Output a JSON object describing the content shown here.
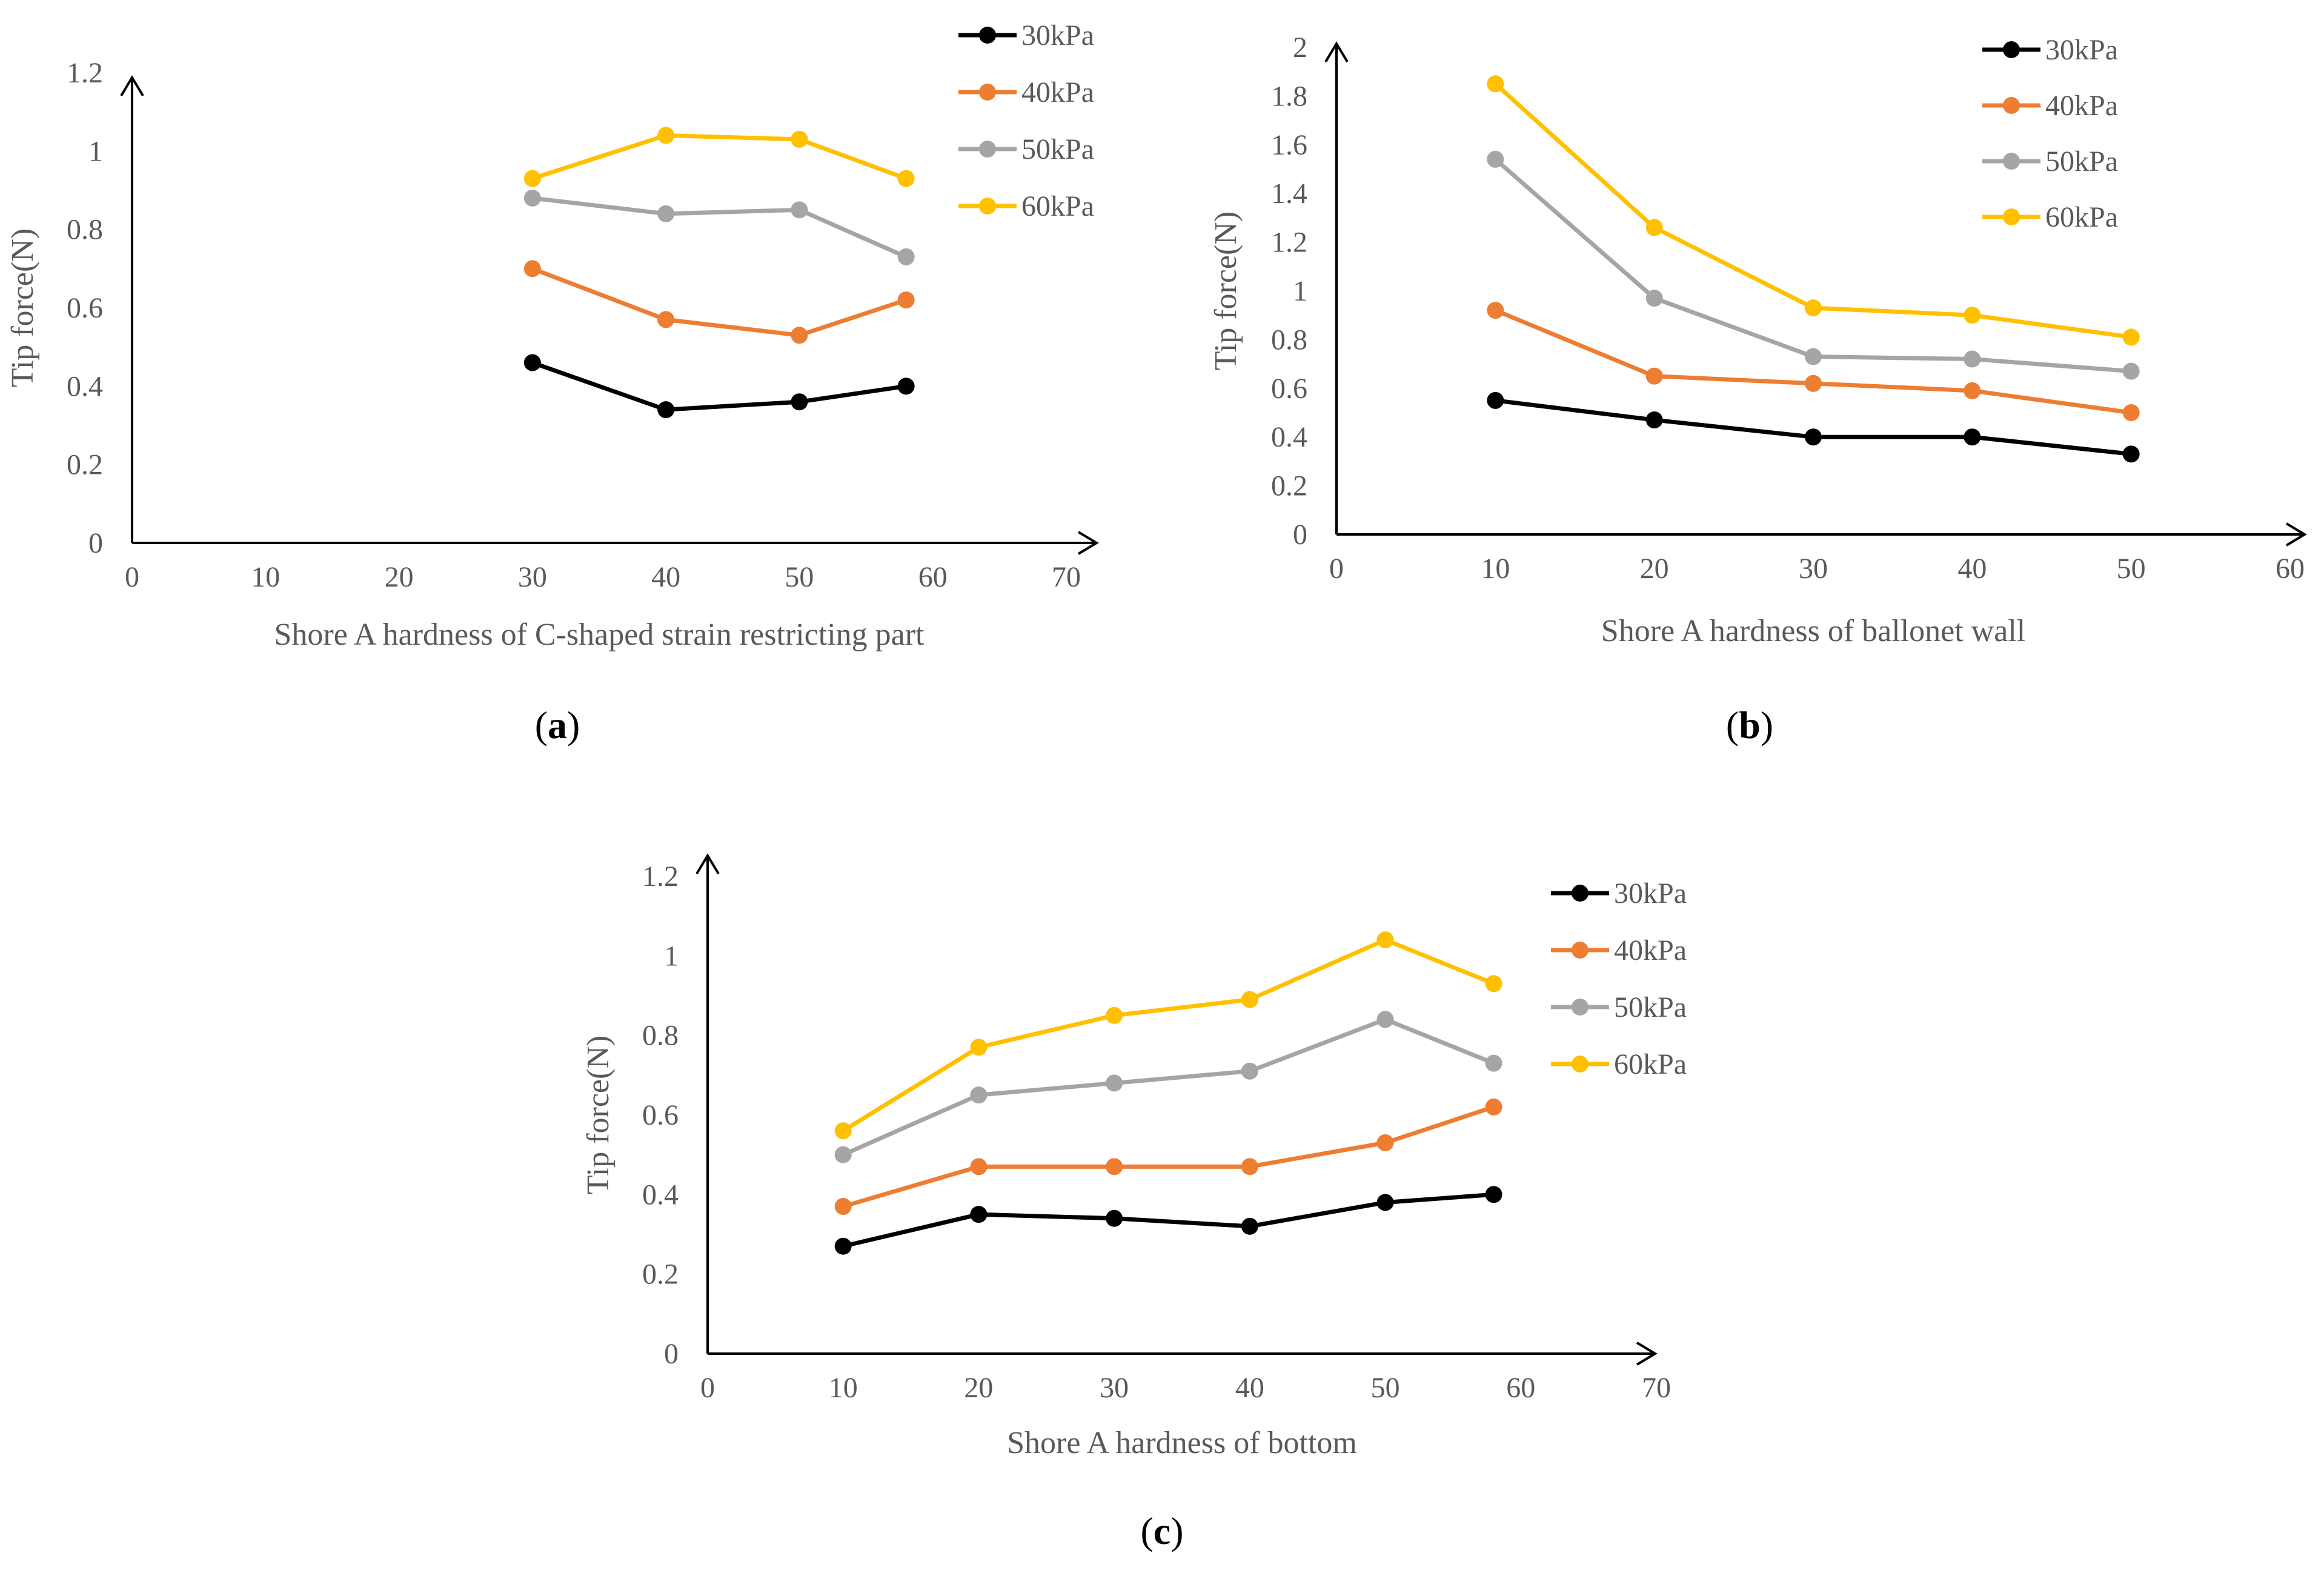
{
  "colors": {
    "30kPa": "#000000",
    "40kPa": "#ED7D31",
    "50kPa": "#A5A5A5",
    "60kPa": "#FFC000"
  },
  "captions": {
    "a": "a",
    "b": "b",
    "c": "c"
  },
  "chart_data": [
    {
      "id": "a",
      "type": "line",
      "title": "",
      "xlabel": "Shore A hardness of C-shaped strain restricting part",
      "ylabel": "Tip force(N)",
      "xlim": [
        0,
        70
      ],
      "ylim": [
        0,
        1.2
      ],
      "xticks": [
        "0",
        "10",
        "20",
        "30",
        "40",
        "50",
        "60",
        "70"
      ],
      "yticks": [
        "0",
        "0.2",
        "0.4",
        "0.6",
        "0.8",
        "1",
        "1.2"
      ],
      "grid": false,
      "legend": "top-right",
      "x": [
        30,
        40,
        50,
        58
      ],
      "series": [
        {
          "name": "30kPa",
          "values": [
            0.46,
            0.34,
            0.36,
            0.4
          ]
        },
        {
          "name": "40kPa",
          "values": [
            0.7,
            0.57,
            0.53,
            0.62
          ]
        },
        {
          "name": "50kPa",
          "values": [
            0.88,
            0.84,
            0.85,
            0.73
          ]
        },
        {
          "name": "60kPa",
          "values": [
            0.93,
            1.04,
            1.03,
            0.93
          ]
        }
      ]
    },
    {
      "id": "b",
      "type": "line",
      "title": "",
      "xlabel": "Shore A hardness of ballonet wall",
      "ylabel": "Tip force(N)",
      "xlim": [
        0,
        60
      ],
      "ylim": [
        0,
        2
      ],
      "xticks": [
        "0",
        "10",
        "20",
        "30",
        "40",
        "50",
        "60"
      ],
      "yticks": [
        "0",
        "0.2",
        "0.4",
        "0.6",
        "0.8",
        "1",
        "1.2",
        "1.4",
        "1.6",
        "1.8",
        "2"
      ],
      "grid": false,
      "legend": "top-right",
      "x": [
        10,
        20,
        30,
        40,
        50
      ],
      "series": [
        {
          "name": "30kPa",
          "values": [
            0.55,
            0.47,
            0.4,
            0.4,
            0.33
          ]
        },
        {
          "name": "40kPa",
          "values": [
            0.92,
            0.65,
            0.62,
            0.59,
            0.5
          ]
        },
        {
          "name": "50kPa",
          "values": [
            1.54,
            0.97,
            0.73,
            0.72,
            0.67
          ]
        },
        {
          "name": "60kPa",
          "values": [
            1.85,
            1.26,
            0.93,
            0.9,
            0.81
          ]
        }
      ]
    },
    {
      "id": "c",
      "type": "line",
      "title": "",
      "xlabel": "Shore A hardness of bottom",
      "ylabel": "Tip force(N)",
      "xlim": [
        0,
        70
      ],
      "ylim": [
        0,
        1.2
      ],
      "xticks": [
        "0",
        "10",
        "20",
        "30",
        "40",
        "50",
        "60",
        "70"
      ],
      "yticks": [
        "0",
        "0.2",
        "0.4",
        "0.6",
        "0.8",
        "1",
        "1.2"
      ],
      "grid": false,
      "legend": "right",
      "x": [
        10,
        20,
        30,
        40,
        50,
        58
      ],
      "series": [
        {
          "name": "30kPa",
          "values": [
            0.27,
            0.35,
            0.34,
            0.32,
            0.38,
            0.4
          ]
        },
        {
          "name": "40kPa",
          "values": [
            0.37,
            0.47,
            0.47,
            0.47,
            0.53,
            0.62
          ]
        },
        {
          "name": "50kPa",
          "values": [
            0.5,
            0.65,
            0.68,
            0.71,
            0.84,
            0.73
          ]
        },
        {
          "name": "60kPa",
          "values": [
            0.56,
            0.77,
            0.85,
            0.89,
            1.04,
            0.93
          ]
        }
      ]
    }
  ]
}
